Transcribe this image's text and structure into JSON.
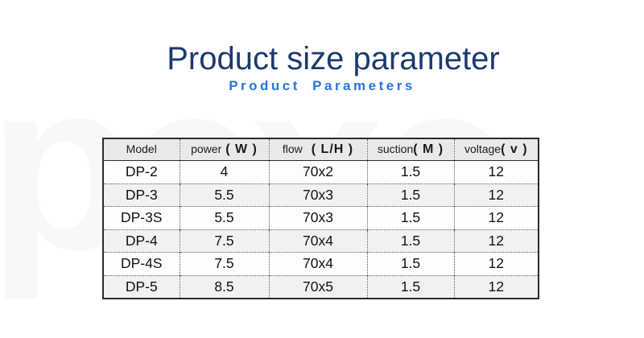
{
  "page": {
    "title": "Product size parameter",
    "subtitle": "Product Parameters",
    "watermark_text": "pexc"
  },
  "colors": {
    "title_text": "#1c3a70",
    "subtitle_text": "#2776dc",
    "header_bg": "#e9e9e9",
    "row_alt_bg": "#f1f1f1",
    "table_border": "#2b2b2b",
    "body_text": "#121212"
  },
  "table": {
    "columns": [
      {
        "label": "Model",
        "unit": ""
      },
      {
        "label": "power",
        "unit": "( W )"
      },
      {
        "label": "flow",
        "unit": "( L/H )"
      },
      {
        "label": "suction",
        "unit": "( M )"
      },
      {
        "label": "voltage",
        "unit": "( v )"
      }
    ],
    "rows": [
      [
        "DP-2",
        "4",
        "70x2",
        "1.5",
        "12"
      ],
      [
        "DP-3",
        "5.5",
        "70x3",
        "1.5",
        "12"
      ],
      [
        "DP-3S",
        "5.5",
        "70x3",
        "1.5",
        "12"
      ],
      [
        "DP-4",
        "7.5",
        "70x4",
        "1.5",
        "12"
      ],
      [
        "DP-4S",
        "7.5",
        "70x4",
        "1.5",
        "12"
      ],
      [
        "DP-5",
        "8.5",
        "70x5",
        "1.5",
        "12"
      ]
    ]
  }
}
